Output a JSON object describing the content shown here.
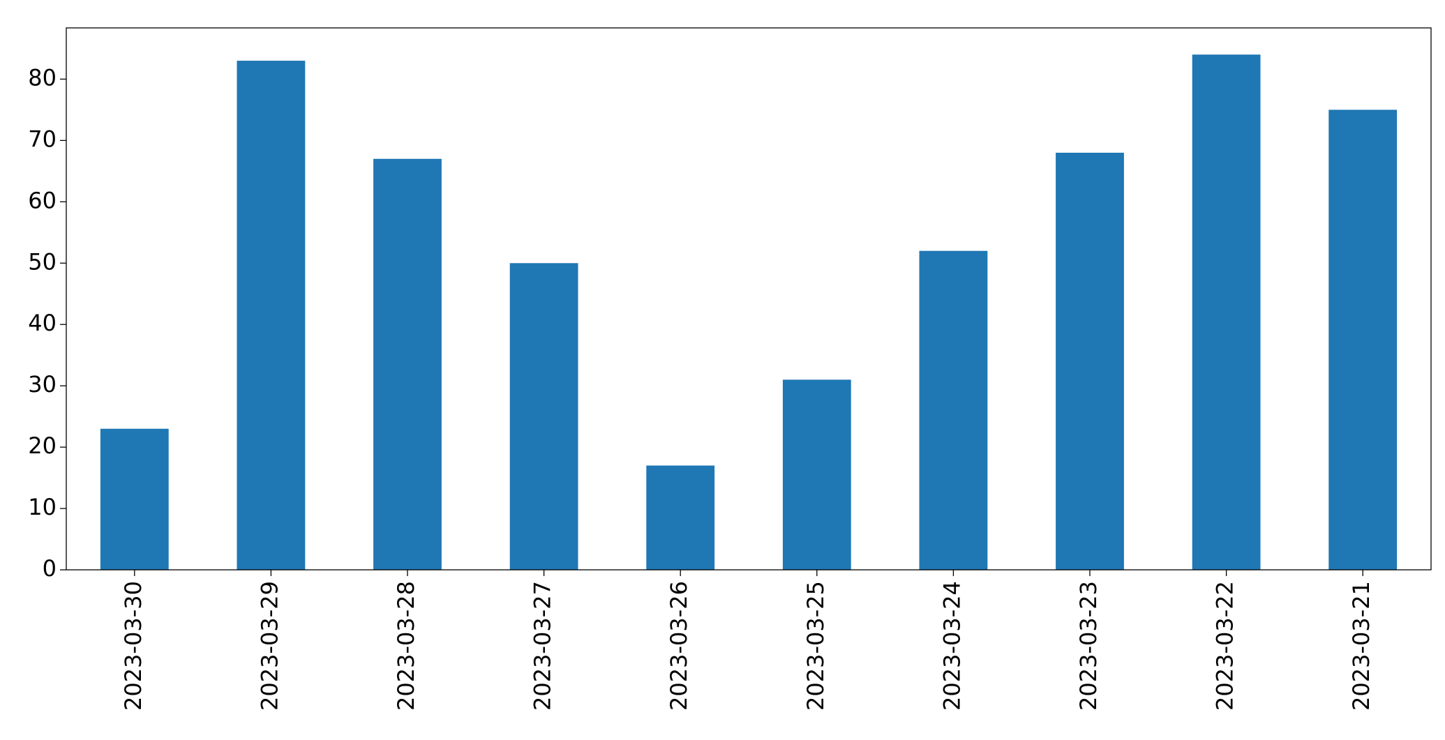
{
  "chart_data": {
    "type": "bar",
    "categories": [
      "2023-03-30",
      "2023-03-29",
      "2023-03-28",
      "2023-03-27",
      "2023-03-26",
      "2023-03-25",
      "2023-03-24",
      "2023-03-23",
      "2023-03-22",
      "2023-03-21"
    ],
    "values": [
      23,
      83,
      67,
      50,
      17,
      31,
      52,
      68,
      84,
      75
    ],
    "color": "#1f77b4",
    "ylim": [
      0,
      88.35
    ],
    "yticks": [
      0,
      10,
      20,
      30,
      40,
      50,
      60,
      70,
      80
    ],
    "grid": false
  }
}
